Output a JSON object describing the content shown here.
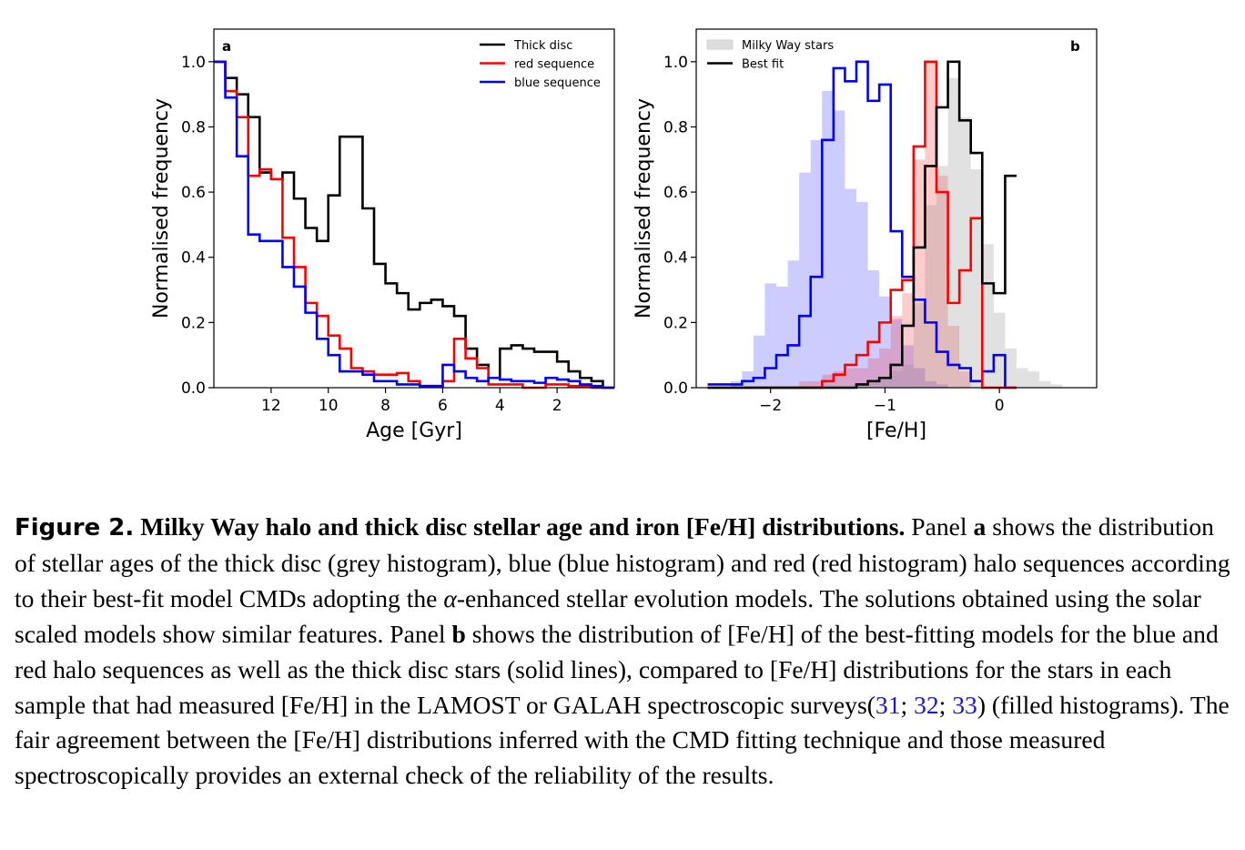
{
  "chart_data": [
    {
      "type": "line",
      "panel_label": "a",
      "xlabel": "Age [Gyr]",
      "ylabel": "Normalised frequency",
      "xlim": [
        14,
        0
      ],
      "ylim": [
        0,
        1.1
      ],
      "x_inverted": true,
      "xticks": [
        12,
        10,
        8,
        6,
        4,
        2
      ],
      "xtick_labels": [
        "12",
        "10",
        "8",
        "6",
        "4",
        "2"
      ],
      "yticks": [
        0,
        0.2,
        0.4,
        0.6,
        0.8,
        1.0
      ],
      "ytick_labels": [
        "0.0",
        "0.2",
        "0.4",
        "0.6",
        "0.8",
        "1.0"
      ],
      "legend_position": "top-right",
      "step_edges": [
        14.0,
        13.6,
        13.2,
        12.8,
        12.4,
        12.0,
        11.6,
        11.2,
        10.8,
        10.4,
        10.0,
        9.6,
        9.2,
        8.8,
        8.4,
        8.0,
        7.6,
        7.2,
        6.8,
        6.4,
        6.0,
        5.6,
        5.2,
        4.8,
        4.4,
        4.0,
        3.6,
        3.2,
        2.8,
        2.4,
        2.0,
        1.6,
        1.2,
        0.8,
        0.4,
        0.0
      ],
      "series": [
        {
          "name": "Thick disc",
          "color": "#000000",
          "values": [
            1.0,
            0.95,
            0.9,
            0.83,
            0.66,
            0.64,
            0.66,
            0.58,
            0.49,
            0.45,
            0.59,
            0.77,
            0.77,
            0.55,
            0.38,
            0.32,
            0.29,
            0.24,
            0.26,
            0.27,
            0.25,
            0.22,
            0.12,
            0.07,
            0.03,
            0.12,
            0.13,
            0.12,
            0.11,
            0.11,
            0.08,
            0.05,
            0.03,
            0.02,
            0.0
          ]
        },
        {
          "name": "red sequence",
          "color": "#ff0000",
          "values": [
            1.0,
            0.91,
            0.83,
            0.65,
            0.67,
            0.64,
            0.46,
            0.37,
            0.26,
            0.22,
            0.16,
            0.12,
            0.06,
            0.05,
            0.04,
            0.04,
            0.045,
            0.02,
            0.005,
            0.005,
            0.02,
            0.15,
            0.09,
            0.06,
            0.01,
            0.01,
            0.01,
            0.0,
            0.0,
            0.01,
            0.01,
            0.005,
            0.005,
            0.0,
            0.0
          ]
        },
        {
          "name": "blue sequence",
          "color": "#0000ff",
          "values": [
            1.0,
            0.89,
            0.71,
            0.47,
            0.45,
            0.45,
            0.37,
            0.31,
            0.23,
            0.15,
            0.1,
            0.05,
            0.05,
            0.04,
            0.02,
            0.02,
            0.01,
            0.01,
            0.005,
            0.005,
            0.07,
            0.05,
            0.03,
            0.02,
            0.03,
            0.025,
            0.02,
            0.02,
            0.015,
            0.03,
            0.025,
            0.02,
            0.01,
            0.005,
            0.0
          ]
        }
      ]
    },
    {
      "type": "line",
      "panel_label": "b",
      "xlabel": "[Fe/H]",
      "ylabel": "Normalised frequency",
      "xlim": [
        -2.65,
        0.85
      ],
      "ylim": [
        0,
        1.1
      ],
      "xticks": [
        -2,
        -1,
        0
      ],
      "xtick_labels": [
        "−2",
        "−1",
        "0"
      ],
      "yticks": [
        0,
        0.2,
        0.4,
        0.6,
        0.8,
        1.0
      ],
      "ytick_labels": [
        "0.0",
        "0.2",
        "0.4",
        "0.6",
        "0.8",
        "1.0"
      ],
      "legend_position": "top-left",
      "legend": [
        {
          "name": "Milky Way stars",
          "style": "filled",
          "color": "#dddddd"
        },
        {
          "name": "Best fit",
          "style": "line",
          "color": "#000000"
        }
      ],
      "filled_edges": [
        -2.35,
        -2.25,
        -2.15,
        -2.05,
        -1.95,
        -1.85,
        -1.75,
        -1.65,
        -1.55,
        -1.45,
        -1.35,
        -1.25,
        -1.15,
        -1.05,
        -0.95,
        -0.85,
        -0.75,
        -0.65,
        -0.55,
        -0.45,
        -0.35,
        -0.25,
        -0.15,
        -0.05,
        0.05,
        0.15,
        0.25,
        0.35,
        0.45,
        0.55
      ],
      "filled_series": [
        {
          "name": "blue sequence stars",
          "color": "#0000ff",
          "values": [
            0.02,
            0.05,
            0.16,
            0.32,
            0.31,
            0.39,
            0.66,
            0.76,
            0.91,
            0.85,
            0.61,
            0.57,
            0.36,
            0.28,
            0.21,
            0.13,
            0.06,
            0.02,
            0.01,
            0.0,
            0.0,
            0.0,
            0.0,
            0.0,
            0.0,
            0.0,
            0.0,
            0.0,
            0.0
          ]
        },
        {
          "name": "red sequence stars",
          "color": "#ff0000",
          "values": [
            0.0,
            0.0,
            0.0,
            0.0,
            0.0,
            0.0,
            0.02,
            0.02,
            0.04,
            0.05,
            0.06,
            0.06,
            0.09,
            0.12,
            0.22,
            0.29,
            0.7,
            1.0,
            0.65,
            0.19,
            0.05,
            0.0,
            0.0,
            0.0,
            0.0,
            0.0,
            0.0,
            0.0,
            0.0
          ]
        },
        {
          "name": "thick disc stars",
          "color": "#888888",
          "values": [
            0.0,
            0.0,
            0.0,
            0.0,
            0.0,
            0.0,
            0.0,
            0.0,
            0.0,
            0.0,
            0.0,
            0.01,
            0.02,
            0.03,
            0.05,
            0.07,
            0.26,
            0.56,
            0.68,
            0.95,
            0.83,
            0.67,
            0.44,
            0.23,
            0.12,
            0.06,
            0.05,
            0.02,
            0.01
          ]
        }
      ],
      "step_edges": [
        -2.55,
        -2.45,
        -2.35,
        -2.25,
        -2.15,
        -2.05,
        -1.95,
        -1.85,
        -1.75,
        -1.65,
        -1.55,
        -1.45,
        -1.35,
        -1.25,
        -1.15,
        -1.05,
        -0.95,
        -0.85,
        -0.75,
        -0.65,
        -0.55,
        -0.45,
        -0.35,
        -0.25,
        -0.15,
        -0.05,
        0.05,
        0.15
      ],
      "series": [
        {
          "name": "blue sequence",
          "color": "#0000ff",
          "values": [
            0.01,
            0.01,
            0.01,
            0.02,
            0.03,
            0.06,
            0.1,
            0.13,
            0.22,
            0.34,
            0.76,
            0.98,
            0.94,
            1.0,
            0.88,
            0.93,
            0.48,
            0.34,
            0.27,
            0.2,
            0.11,
            0.07,
            0.06,
            0.02,
            0.05,
            0.1,
            0.0
          ]
        },
        {
          "name": "red sequence",
          "color": "#ff0000",
          "values": [
            0.0,
            0.0,
            0.0,
            0.0,
            0.0,
            0.0,
            0.0,
            0.0,
            0.0,
            0.0,
            0.02,
            0.04,
            0.07,
            0.1,
            0.14,
            0.2,
            0.3,
            0.33,
            0.74,
            1.0,
            0.6,
            0.26,
            0.36,
            0.52,
            0.0,
            0.0,
            0.0
          ]
        },
        {
          "name": "Thick disc",
          "color": "#000000",
          "values": [
            0.0,
            0.0,
            0.0,
            0.0,
            0.0,
            0.0,
            0.0,
            0.0,
            0.0,
            0.0,
            0.0,
            0.0,
            0.0,
            0.01,
            0.02,
            0.03,
            0.07,
            0.19,
            0.43,
            0.68,
            0.86,
            1.0,
            0.82,
            0.72,
            0.32,
            0.29,
            0.65
          ]
        }
      ]
    }
  ],
  "caption": {
    "label": "Figure 2.",
    "title": "Milky Way halo and thick disc stellar age and iron [Fe/H] distributions.",
    "s1": " Panel ",
    "panel_a": "a",
    "s2": " shows the distribution of stellar ages of the thick disc (grey histogram), blue (blue histogram) and red (red histogram) halo sequences according to their best-fit model CMDs adopting the ",
    "alpha": "α",
    "s3": "-enhanced stellar evolution models. The solutions obtained using the solar scaled models show similar features. Panel ",
    "panel_b": "b",
    "s4": " shows the distribution of [Fe/H] of the best-fitting models for the blue and red halo sequences as well as the thick disc stars (solid lines), compared to [Fe/H] distributions for the stars in each sample that had measured [Fe/H] in the LAMOST or GALAH spectroscopic surveys(",
    "ref1": "31",
    "sep1": "; ",
    "ref2": "32",
    "sep2": "; ",
    "ref3": "33",
    "s5": ") (filled histograms). The fair agreement between the [Fe/H] distributions inferred with the CMD fitting technique and those measured spectroscopically provides an external check of the reliability of the results."
  }
}
